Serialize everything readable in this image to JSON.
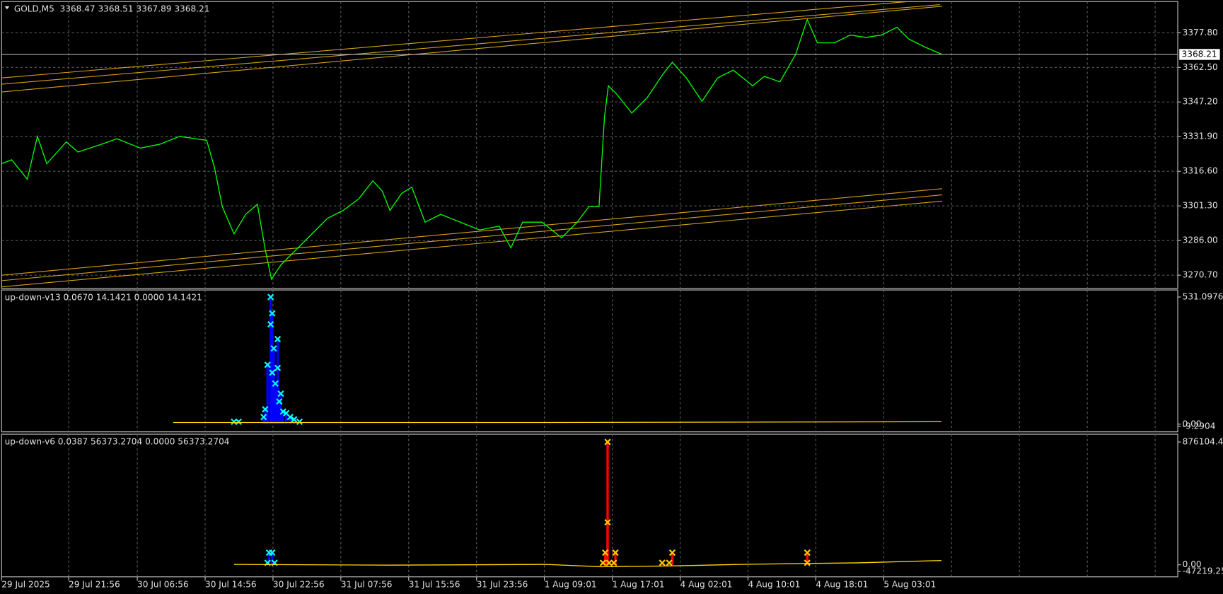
{
  "chart_data": [
    {
      "type": "line",
      "title": "GOLD,M5  3368.47 3368.51 3367.89 3368.21",
      "grid": true,
      "xlim": [
        2,
        1510
      ],
      "ylim": [
        3264.85,
        3391.57
      ],
      "yticks": [
        {
          "value": 3377.8,
          "label": "3377.80"
        },
        {
          "value": 3362.5,
          "label": "3362.50"
        },
        {
          "value": 3347.2,
          "label": "3347.20"
        },
        {
          "value": 3331.9,
          "label": "3331.90"
        },
        {
          "value": 3316.6,
          "label": "3316.60"
        },
        {
          "value": 3301.3,
          "label": "3301.30"
        },
        {
          "value": 3286,
          "label": "3286.00"
        },
        {
          "value": 3270.7,
          "label": "3270.70"
        }
      ],
      "last_price": 3368.21,
      "x": [
        2,
        15,
        35,
        48,
        60,
        85,
        100,
        130,
        150,
        180,
        205,
        230,
        265,
        275,
        285,
        300,
        315,
        330,
        340,
        348,
        360,
        380,
        400,
        420,
        440,
        460,
        478,
        490,
        500,
        515,
        528,
        545,
        565,
        590,
        615,
        640,
        655,
        670,
        695,
        720,
        740,
        755,
        768,
        775,
        780,
        790,
        810,
        830,
        850,
        862,
        880,
        900,
        920,
        940,
        965,
        980,
        1000,
        1020,
        1035,
        1048,
        1070,
        1090,
        1110,
        1130,
        1150,
        1165,
        1185,
        1208
      ],
      "series": [
        {
          "color": "#00ff00",
          "values": [
            3319.94,
            3321.67,
            3313.06,
            3332.0,
            3319.94,
            3329.59,
            3325.11,
            3328.55,
            3330.96,
            3326.83,
            3328.55,
            3332.0,
            3330.28,
            3318.22,
            3301.0,
            3288.95,
            3297.56,
            3302.04,
            3282.06,
            3268.98,
            3275.17,
            3282.06,
            3288.95,
            3295.84,
            3299.28,
            3304.45,
            3312.37,
            3307.89,
            3299.28,
            3306.86,
            3309.61,
            3294.12,
            3297.56,
            3294.12,
            3290.67,
            3292.39,
            3282.75,
            3294.12,
            3294.12,
            3287.23,
            3294.12,
            3301.0,
            3301.0,
            3340.61,
            3354.38,
            3350.94,
            3342.33,
            3349.22,
            3359.55,
            3364.71,
            3357.83,
            3347.49,
            3357.83,
            3361.27,
            3354.38,
            3358.51,
            3356.1,
            3368.16,
            3383.65,
            3373.32,
            3373.32,
            3376.77,
            3375.73,
            3376.77,
            3380.21,
            3375.04,
            3371.6,
            3368.21
          ]
        }
      ],
      "trendlines": [
        {
          "color": "#d4a017",
          "x": [
            2,
            1165
          ],
          "values": [
            3357.83,
            3391.58
          ]
        },
        {
          "color": "#d4a017",
          "x": [
            2,
            1205
          ],
          "values": [
            3355.07,
            3390.2
          ]
        },
        {
          "color": "#d4a017",
          "x": [
            2,
            1208
          ],
          "values": [
            3351.63,
            3389.51
          ]
        },
        {
          "color": "#d4a017",
          "x": [
            2,
            1208
          ],
          "values": [
            3270.7,
            3308.92
          ]
        },
        {
          "color": "#d4a017",
          "x": [
            2,
            1208
          ],
          "values": [
            3268.29,
            3306.17
          ]
        },
        {
          "color": "#d4a017",
          "x": [
            2,
            1208
          ],
          "values": [
            3265.53,
            3303.41
          ]
        }
      ]
    },
    {
      "type": "indicator",
      "title": "up-down-v13 0.0670 14.1421 0.0000 14.1421",
      "xlim": [
        2,
        1510
      ],
      "ylim": [
        -9.2904,
        531.0976
      ],
      "yticks": [
        -9.2904,
        {
          "value": 0,
          "label": "0.00"
        },
        531.0976
      ],
      "series": [
        {
          "style": "bars",
          "color": "#0000ff",
          "marker_color": "#00ffff",
          "x": [
            300,
            306,
            338,
            340,
            343,
            347,
            347,
            349,
            349,
            351,
            353,
            356,
            356,
            358,
            360,
            363,
            367,
            372,
            377,
            384
          ],
          "values": [
            10.24,
            10.24,
            29.77,
            62.32,
            247.88,
            531.1,
            417.16,
            462.74,
            215.33,
            316.24,
            169.75,
            355.31,
            234.86,
            94.88,
            127.43,
            52.56,
            46.05,
            29.77,
            20.0,
            10.24
          ]
        },
        {
          "style": "line",
          "color": "#ffd700",
          "x": [
            222,
            700,
            1207
          ],
          "values": [
            6.98,
            6.98,
            10.24
          ]
        }
      ]
    },
    {
      "type": "indicator",
      "title": "up-down-v6 0.0387 56373.2704 0.0000 56373.2704",
      "xlim": [
        2,
        1510
      ],
      "ylim": [
        -47219.25,
        876104.42
      ],
      "yticks": [
        -47219.25,
        {
          "value": 0,
          "label": "0.00"
        },
        876104.42
      ],
      "xticks": [
        {
          "value": 2,
          "label": "29 Jul 2025"
        },
        {
          "value": 88,
          "label": "29 Jul 21:56"
        },
        {
          "value": 176,
          "label": "30 Jul 06:56"
        },
        {
          "value": 263,
          "label": "30 Jul 14:56"
        },
        {
          "value": 350,
          "label": "30 Jul 22:56"
        },
        {
          "value": 437,
          "label": "31 Jul 07:56"
        },
        {
          "value": 524,
          "label": "31 Jul 15:56"
        },
        {
          "value": 611,
          "label": "31 Jul 23:56"
        },
        {
          "value": 698,
          "label": "1 Aug 09:01"
        },
        {
          "value": 785,
          "label": "1 Aug 17:01"
        },
        {
          "value": 872,
          "label": "4 Aug 02:01"
        },
        {
          "value": 959,
          "label": "4 Aug 10:01"
        },
        {
          "value": 1046,
          "label": "4 Aug 18:01"
        },
        {
          "value": 1133,
          "label": "5 Aug 03:01"
        },
        {
          "value": 1220,
          "label": null
        },
        {
          "value": 1307,
          "label": null
        },
        {
          "value": 1394,
          "label": null
        },
        {
          "value": 1481,
          "label": null
        }
      ],
      "series": [
        {
          "style": "bars",
          "color": "#ff0000",
          "marker_color": "#ffcc00",
          "x": [
            773,
            776,
            779,
            779,
            781,
            787,
            789,
            849,
            858,
            862,
            1035,
            1035
          ],
          "values": [
            13963.4,
            86272.0,
            876104.42,
            303197.8,
            13963.4,
            13963.4,
            86272.0,
            13963.4,
            13963.4,
            86272.0,
            86272.0,
            13963.4
          ]
        },
        {
          "style": "bars",
          "color": "#0000ff",
          "marker_color": "#00ffff",
          "x": [
            343,
            345,
            349,
            352
          ],
          "values": [
            13963.4,
            86272.0,
            86272.0,
            13963.4
          ]
        },
        {
          "style": "line",
          "color": "#ffd700",
          "x": [
            300,
            500,
            700,
            770,
            860,
            950,
            1100,
            1207
          ],
          "values": [
            2839,
            -2724,
            2839,
            -13848,
            -8286,
            2839,
            13963,
            30650
          ]
        }
      ]
    }
  ]
}
